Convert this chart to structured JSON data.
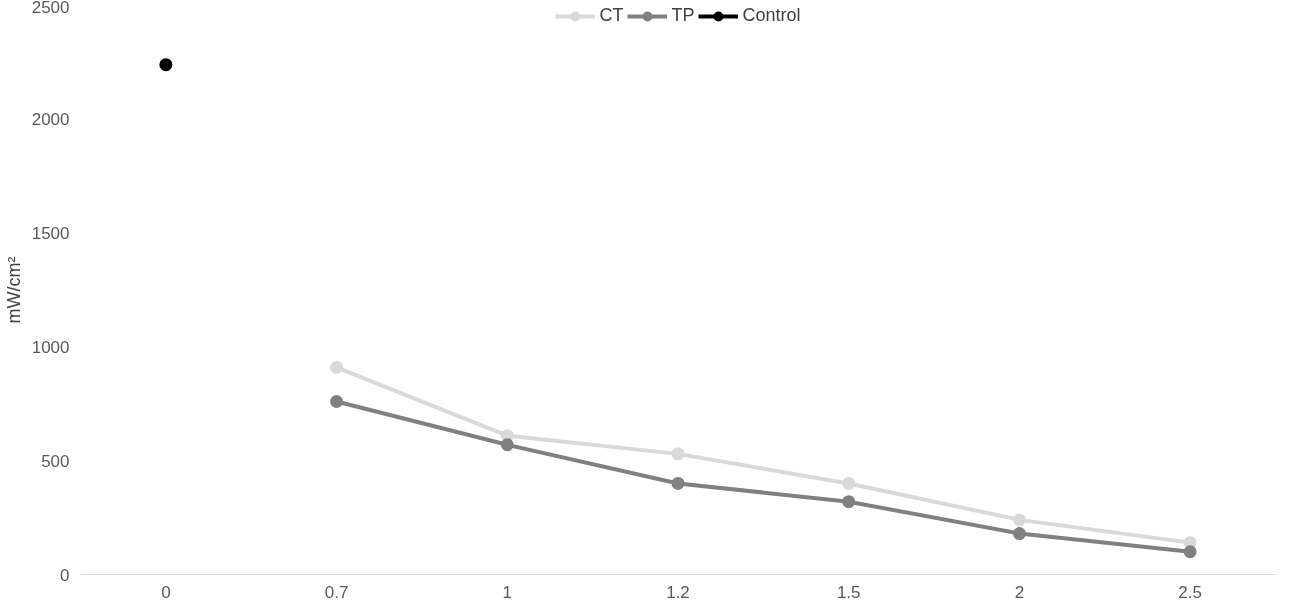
{
  "chart_data": {
    "type": "line",
    "ylabel": "mW/cm²",
    "categories": [
      "0",
      "0.7",
      "1",
      "1.2",
      "1.5",
      "2",
      "2.5"
    ],
    "series": [
      {
        "name": "CT",
        "color": "#d9d9d9",
        "values": [
          null,
          910,
          610,
          530,
          400,
          240,
          140
        ]
      },
      {
        "name": "TP",
        "color": "#808080",
        "values": [
          null,
          760,
          570,
          400,
          320,
          180,
          100
        ]
      },
      {
        "name": "Control",
        "color": "#000000",
        "values": [
          2240,
          null,
          null,
          null,
          null,
          null,
          null
        ]
      }
    ],
    "ylim": [
      0,
      2500
    ],
    "yticks": [
      0,
      500,
      1000,
      1500,
      2000,
      2500
    ],
    "grid": false,
    "legend": "top",
    "marker": "circle",
    "line_style": "solid"
  }
}
